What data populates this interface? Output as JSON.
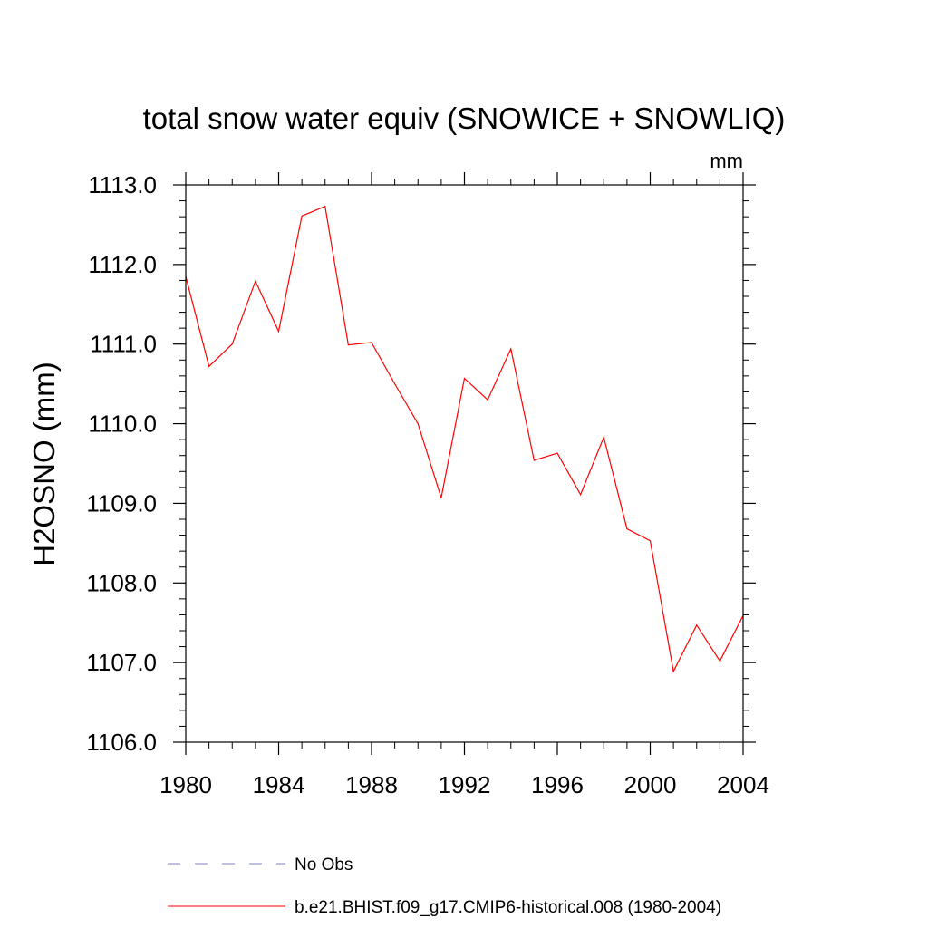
{
  "chart_data": {
    "type": "line",
    "title": "total snow water equiv (SNOWICE + SNOWLIQ)",
    "units": "mm",
    "ylabel": "H2OSNO  (mm)",
    "xlabel": "",
    "xlim": [
      1980,
      2004
    ],
    "ylim": [
      1106.0,
      1113.0
    ],
    "x_ticks": [
      1980,
      1984,
      1988,
      1992,
      1996,
      2000,
      2004
    ],
    "y_ticks": [
      "1106.0",
      "1107.0",
      "1108.0",
      "1109.0",
      "1110.0",
      "1111.0",
      "1112.0",
      "1113.0"
    ],
    "series": [
      {
        "name": "b.e21.BHIST.f09_g17.CMIP6-historical.008 (1980-2004)",
        "color": "#ff0000",
        "x": [
          1980,
          1981,
          1982,
          1983,
          1984,
          1985,
          1986,
          1987,
          1988,
          1989,
          1990,
          1991,
          1992,
          1993,
          1994,
          1995,
          1996,
          1997,
          1998,
          1999,
          2000,
          2001,
          2002,
          2003,
          2004
        ],
        "values": [
          1111.85,
          1110.72,
          1111.0,
          1111.79,
          1111.16,
          1112.61,
          1112.73,
          1110.99,
          1111.02,
          1110.5,
          1110.0,
          1109.07,
          1110.57,
          1110.3,
          1110.94,
          1109.54,
          1109.63,
          1109.11,
          1109.83,
          1108.68,
          1108.53,
          1106.89,
          1107.47,
          1107.02,
          1107.59
        ]
      }
    ],
    "legend": [
      {
        "label": "No Obs",
        "style": "dashed",
        "color": "#8080c0"
      },
      {
        "label": "b.e21.BHIST.f09_g17.CMIP6-historical.008 (1980-2004)",
        "style": "solid",
        "color": "#ff0000"
      }
    ]
  }
}
